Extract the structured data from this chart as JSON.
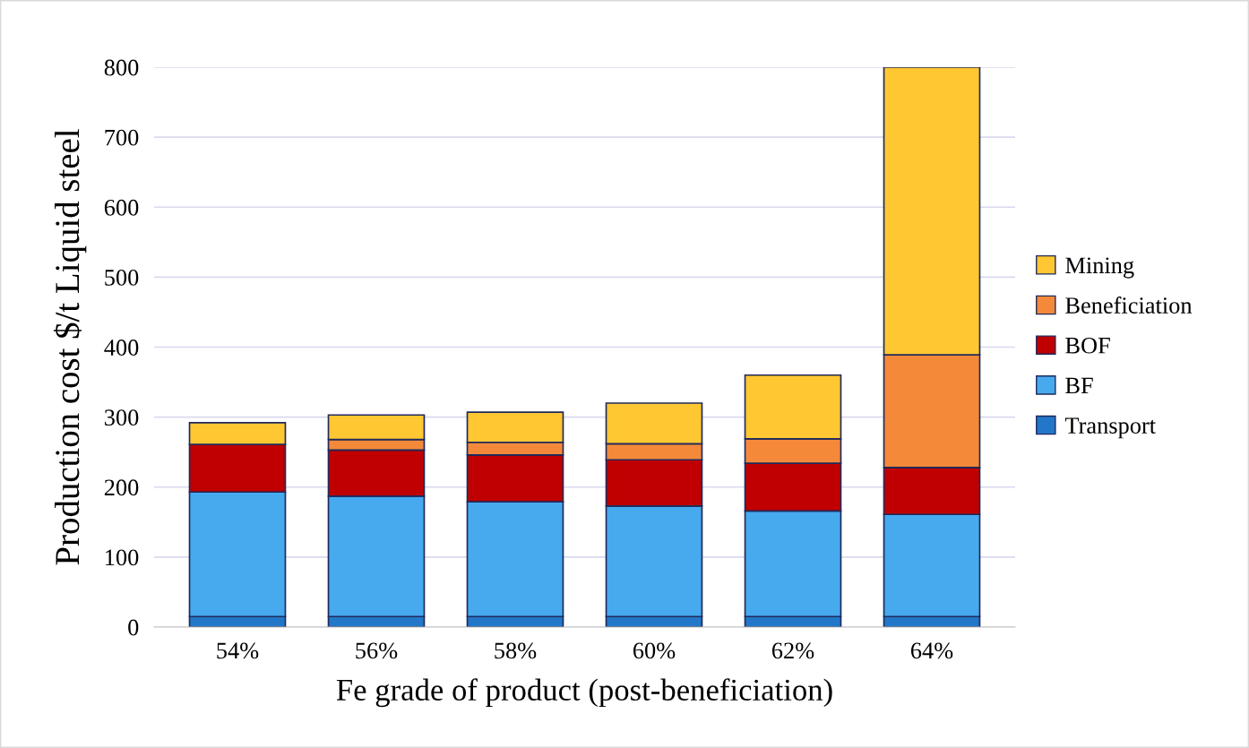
{
  "chart_data": {
    "type": "bar",
    "stacked": true,
    "xlabel": "Fe grade of product (post-beneficiation)",
    "ylabel": "Production cost $/t Liquid steel",
    "categories": [
      "54%",
      "56%",
      "58%",
      "60%",
      "62%",
      "64%"
    ],
    "series": [
      {
        "name": "Transport",
        "color": "#2277c9",
        "values": [
          15,
          15,
          15,
          15,
          15,
          15
        ]
      },
      {
        "name": "BF",
        "color": "#47a9ee",
        "values": [
          178,
          172,
          164,
          158,
          151,
          146
        ]
      },
      {
        "name": "BOF",
        "color": "#c00000",
        "values": [
          68,
          66,
          67,
          66,
          68,
          67
        ]
      },
      {
        "name": "Beneficiation",
        "color": "#f4893a",
        "values": [
          0,
          15,
          18,
          23,
          35,
          161
        ]
      },
      {
        "name": "Mining",
        "color": "#ffc732",
        "values": [
          31,
          35,
          43,
          58,
          91,
          411
        ]
      }
    ],
    "ylim": [
      0,
      800
    ],
    "yticks": [
      0,
      100,
      200,
      300,
      400,
      500,
      600,
      700,
      800
    ],
    "grid": "y",
    "legend": "right"
  }
}
